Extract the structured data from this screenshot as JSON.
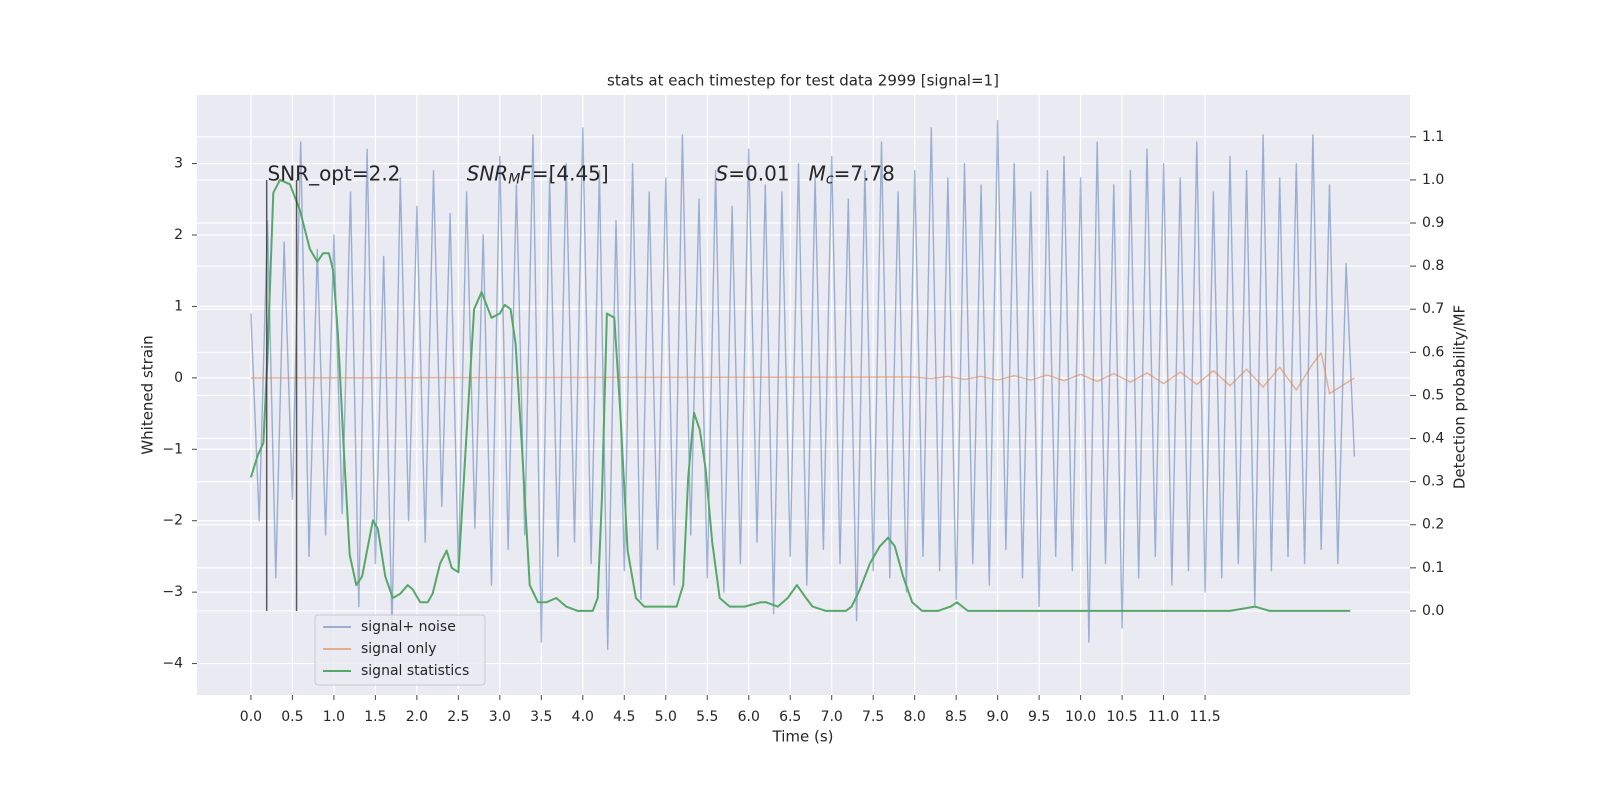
{
  "chart_data": {
    "type": "line",
    "title": "stats at each timestep for test data 2999 [signal=1]",
    "xlabel": "Time (s)",
    "ylabel": "Whitened strain",
    "y2label": "Detection probability/MF",
    "xlim": [
      -0.65,
      13.97
    ],
    "ylim": [
      -4.44,
      3.96
    ],
    "y2lim": [
      -0.195,
      1.197
    ],
    "xticks": [
      {
        "value": 0,
        "label": "0.0"
      },
      {
        "value": 0.5,
        "label": "0.5"
      },
      {
        "value": 1,
        "label": "1.0"
      },
      {
        "value": 1.5,
        "label": "1.5"
      },
      {
        "value": 2,
        "label": "2.0"
      },
      {
        "value": 2.5,
        "label": "2.5"
      },
      {
        "value": 3,
        "label": "3.0"
      },
      {
        "value": 3.5,
        "label": "3.5"
      },
      {
        "value": 4,
        "label": "4.0"
      },
      {
        "value": 4.5,
        "label": "4.5"
      },
      {
        "value": 5,
        "label": "5.0"
      },
      {
        "value": 5.5,
        "label": "5.5"
      },
      {
        "value": 6,
        "label": "6.0"
      },
      {
        "value": 6.5,
        "label": "6.5"
      },
      {
        "value": 7,
        "label": "7.0"
      },
      {
        "value": 7.5,
        "label": "7.5"
      },
      {
        "value": 8,
        "label": "8.0"
      },
      {
        "value": 8.5,
        "label": "8.5"
      },
      {
        "value": 9,
        "label": "9.0"
      },
      {
        "value": 9.5,
        "label": "9.5"
      },
      {
        "value": 10,
        "label": "10.0"
      },
      {
        "value": 10.5,
        "label": "10.5"
      },
      {
        "value": 11,
        "label": "11.0"
      },
      {
        "value": 11.5,
        "label": "11.5"
      }
    ],
    "yticks": [
      {
        "value": -4,
        "label": "−4"
      },
      {
        "value": -3,
        "label": "−3"
      },
      {
        "value": -2,
        "label": "−2"
      },
      {
        "value": -1,
        "label": "−1"
      },
      0,
      1,
      2,
      3
    ],
    "y2ticks": [
      {
        "value": 0,
        "label": "0.0"
      },
      {
        "value": 0.1,
        "label": "0.1"
      },
      {
        "value": 0.2,
        "label": "0.2"
      },
      {
        "value": 0.3,
        "label": "0.3"
      },
      {
        "value": 0.4,
        "label": "0.4"
      },
      {
        "value": 0.5,
        "label": "0.5"
      },
      {
        "value": 0.6,
        "label": "0.6"
      },
      {
        "value": 0.7,
        "label": "0.7"
      },
      {
        "value": 0.8,
        "label": "0.8"
      },
      {
        "value": 0.9,
        "label": "0.9"
      },
      {
        "value": 1,
        "label": "1.0"
      },
      {
        "value": 1.1,
        "label": "1.1"
      }
    ],
    "grid": true,
    "legend": "lower left",
    "series": [
      {
        "name": "signal+ noise",
        "color": "#4c72b0",
        "opacity": 0.5,
        "x": [
          0,
          0.1,
          0.2,
          0.3,
          0.4,
          0.5,
          0.6,
          0.7,
          0.8,
          0.9,
          1,
          1.1,
          1.2,
          1.3,
          1.4,
          1.5,
          1.6,
          1.7,
          1.8,
          1.9,
          2,
          2.1,
          2.2,
          2.3,
          2.4,
          2.5,
          2.6,
          2.7,
          2.8,
          2.9,
          3,
          3.1,
          3.2,
          3.3,
          3.4,
          3.5,
          3.6,
          3.7,
          3.8,
          3.9,
          4,
          4.1,
          4.2,
          4.3,
          4.4,
          4.5,
          4.6,
          4.7,
          4.8,
          4.9,
          5,
          5.1,
          5.2,
          5.3,
          5.4,
          5.5,
          5.6,
          5.7,
          5.8,
          5.9,
          6,
          6.1,
          6.2,
          6.3,
          6.4,
          6.5,
          6.6,
          6.7,
          6.8,
          6.9,
          7,
          7.1,
          7.2,
          7.3,
          7.4,
          7.5,
          7.6,
          7.7,
          7.8,
          7.9,
          8,
          8.1,
          8.2,
          8.3,
          8.4,
          8.5,
          8.6,
          8.7,
          8.8,
          8.9,
          9,
          9.1,
          9.2,
          9.3,
          9.4,
          9.5,
          9.6,
          9.7,
          9.8,
          9.9,
          10,
          10.1,
          10.2,
          10.3,
          10.4,
          10.5,
          10.6,
          10.7,
          10.8,
          10.9,
          11,
          11.1,
          11.2,
          11.3,
          11.4,
          11.5,
          11.6,
          11.7,
          11.8,
          11.9,
          12,
          12.1,
          12.2,
          12.3,
          12.4,
          12.5,
          12.6,
          12.7,
          12.8,
          12.9,
          13,
          13.1,
          13.2,
          13.3
        ],
        "values": [
          0.9,
          -2.0,
          2.2,
          -2.8,
          1.9,
          -1.7,
          3.3,
          -2.5,
          1.8,
          -2.2,
          2.0,
          -1.9,
          2.6,
          -3.2,
          3.2,
          -2.6,
          1.7,
          -3.5,
          2.8,
          -2.0,
          2.4,
          -2.3,
          2.9,
          -1.8,
          2.3,
          -2.7,
          2.6,
          -2.1,
          2.0,
          -2.9,
          3.1,
          -2.4,
          2.7,
          -2.2,
          3.4,
          -3.7,
          2.8,
          -2.5,
          3.0,
          -2.3,
          3.5,
          -2.6,
          2.9,
          -3.8,
          2.2,
          -2.7,
          3.0,
          -3.1,
          2.6,
          -2.4,
          2.8,
          -2.9,
          3.4,
          -2.2,
          2.5,
          -2.8,
          2.9,
          -3.0,
          2.4,
          -2.6,
          3.2,
          -2.3,
          2.7,
          -3.3,
          2.6,
          -2.5,
          3.0,
          -2.9,
          2.8,
          -2.4,
          3.1,
          -2.6,
          2.5,
          -3.4,
          2.9,
          -2.7,
          3.3,
          -2.8,
          2.6,
          -3.0,
          2.9,
          -2.5,
          3.5,
          -2.7,
          2.8,
          -3.1,
          3.0,
          -2.6,
          2.7,
          -2.9,
          3.6,
          -2.4,
          3.0,
          -2.8,
          2.6,
          -3.2,
          2.9,
          -2.5,
          3.1,
          -2.7,
          2.8,
          -3.7,
          3.3,
          -2.6,
          2.7,
          -3.5,
          2.9,
          -2.8,
          3.2,
          -2.5,
          3.0,
          -2.9,
          2.8,
          -2.7,
          3.3,
          -3.0,
          2.6,
          -2.8,
          3.1,
          -2.6,
          2.9,
          -3.2,
          3.4,
          -2.7,
          2.8,
          -2.5,
          3.0,
          -2.6,
          3.4,
          -2.4,
          2.7,
          -2.6,
          1.6,
          -1.1
        ]
      },
      {
        "name": "signal only",
        "color": "#dd8452",
        "opacity": 0.6,
        "x": [
          0,
          8.0,
          8.2,
          8.4,
          8.6,
          8.8,
          9.0,
          9.2,
          9.4,
          9.6,
          9.8,
          10.0,
          10.2,
          10.4,
          10.6,
          10.8,
          11.0,
          11.2,
          11.4,
          11.6,
          11.8,
          12.0,
          12.2,
          12.4,
          12.6,
          12.8,
          12.9,
          13.0,
          13.3
        ],
        "values": [
          0,
          0.01,
          -0.01,
          0.02,
          -0.02,
          0.02,
          -0.03,
          0.03,
          -0.03,
          0.04,
          -0.04,
          0.05,
          -0.05,
          0.06,
          -0.06,
          0.07,
          -0.08,
          0.08,
          -0.09,
          0.1,
          -0.11,
          0.12,
          -0.13,
          0.15,
          -0.17,
          0.2,
          0.35,
          -0.22,
          0
        ]
      },
      {
        "name": "signal statistics",
        "color": "#55a868",
        "opacity": 1,
        "axis": "y2",
        "x": [
          0.0,
          0.08,
          0.15,
          0.2,
          0.27,
          0.35,
          0.47,
          0.59,
          0.71,
          0.8,
          0.87,
          0.94,
          0.99,
          1.05,
          1.12,
          1.19,
          1.27,
          1.34,
          1.41,
          1.47,
          1.53,
          1.62,
          1.71,
          1.8,
          1.89,
          1.95,
          2.04,
          2.13,
          2.19,
          2.28,
          2.36,
          2.42,
          2.5,
          2.58,
          2.69,
          2.78,
          2.9,
          3.0,
          3.06,
          3.13,
          3.19,
          3.27,
          3.36,
          3.46,
          3.56,
          3.68,
          3.8,
          3.94,
          4.12,
          4.18,
          4.23,
          4.29,
          4.38,
          4.45,
          4.54,
          4.64,
          4.74,
          4.88,
          5.0,
          5.13,
          5.21,
          5.27,
          5.34,
          5.41,
          5.48,
          5.56,
          5.65,
          5.77,
          5.95,
          6.14,
          6.21,
          6.35,
          6.47,
          6.58,
          6.69,
          6.77,
          6.93,
          7.17,
          7.24,
          7.34,
          7.46,
          7.58,
          7.68,
          7.76,
          7.86,
          7.97,
          8.09,
          8.28,
          8.43,
          8.51,
          8.64,
          9.03,
          10.23,
          11.8,
          12.1,
          12.28,
          12.52,
          13.25
        ],
        "values": [
          0.31,
          0.36,
          0.39,
          0.59,
          0.97,
          1.0,
          0.99,
          0.93,
          0.84,
          0.81,
          0.83,
          0.83,
          0.79,
          0.64,
          0.37,
          0.13,
          0.06,
          0.08,
          0.15,
          0.21,
          0.19,
          0.08,
          0.03,
          0.04,
          0.06,
          0.05,
          0.02,
          0.02,
          0.04,
          0.11,
          0.14,
          0.1,
          0.09,
          0.35,
          0.7,
          0.74,
          0.68,
          0.69,
          0.71,
          0.7,
          0.62,
          0.37,
          0.06,
          0.02,
          0.02,
          0.03,
          0.01,
          0.0,
          0.0,
          0.03,
          0.26,
          0.69,
          0.68,
          0.47,
          0.14,
          0.03,
          0.01,
          0.01,
          0.01,
          0.01,
          0.06,
          0.31,
          0.46,
          0.42,
          0.33,
          0.16,
          0.03,
          0.01,
          0.01,
          0.02,
          0.02,
          0.01,
          0.03,
          0.06,
          0.03,
          0.01,
          0.0,
          0.0,
          0.01,
          0.05,
          0.11,
          0.15,
          0.17,
          0.15,
          0.08,
          0.02,
          0.0,
          0.0,
          0.01,
          0.02,
          0.0,
          0.0,
          0.0,
          0.0,
          0.01,
          0.0,
          0.0,
          0.0
        ]
      }
    ],
    "vlines": {
      "x": [
        0.19,
        0.55
      ],
      "range": [
        0,
        1
      ],
      "axis": "y2",
      "color": "#333333"
    },
    "annotations": [
      {
        "x": 0.2,
        "y": 2.85,
        "segments": [
          {
            "text": "SNR_opt=2.2",
            "style": "normal"
          }
        ]
      },
      {
        "x": 2.6,
        "y": 2.85,
        "segments": [
          {
            "text": "SNR",
            "style": "italic"
          },
          {
            "text": "M",
            "style": "sub"
          },
          {
            "text": "F",
            "style": "italic"
          },
          {
            "text": "=[4.45]",
            "style": "normal"
          }
        ]
      },
      {
        "x": 5.6,
        "y": 2.85,
        "segments": [
          {
            "text": "S",
            "style": "italic"
          },
          {
            "text": "=0.01   ",
            "style": "normal"
          },
          {
            "text": "M",
            "style": "italic"
          },
          {
            "text": "c",
            "style": "sub"
          },
          {
            "text": "=7.78",
            "style": "normal"
          }
        ]
      }
    ]
  }
}
